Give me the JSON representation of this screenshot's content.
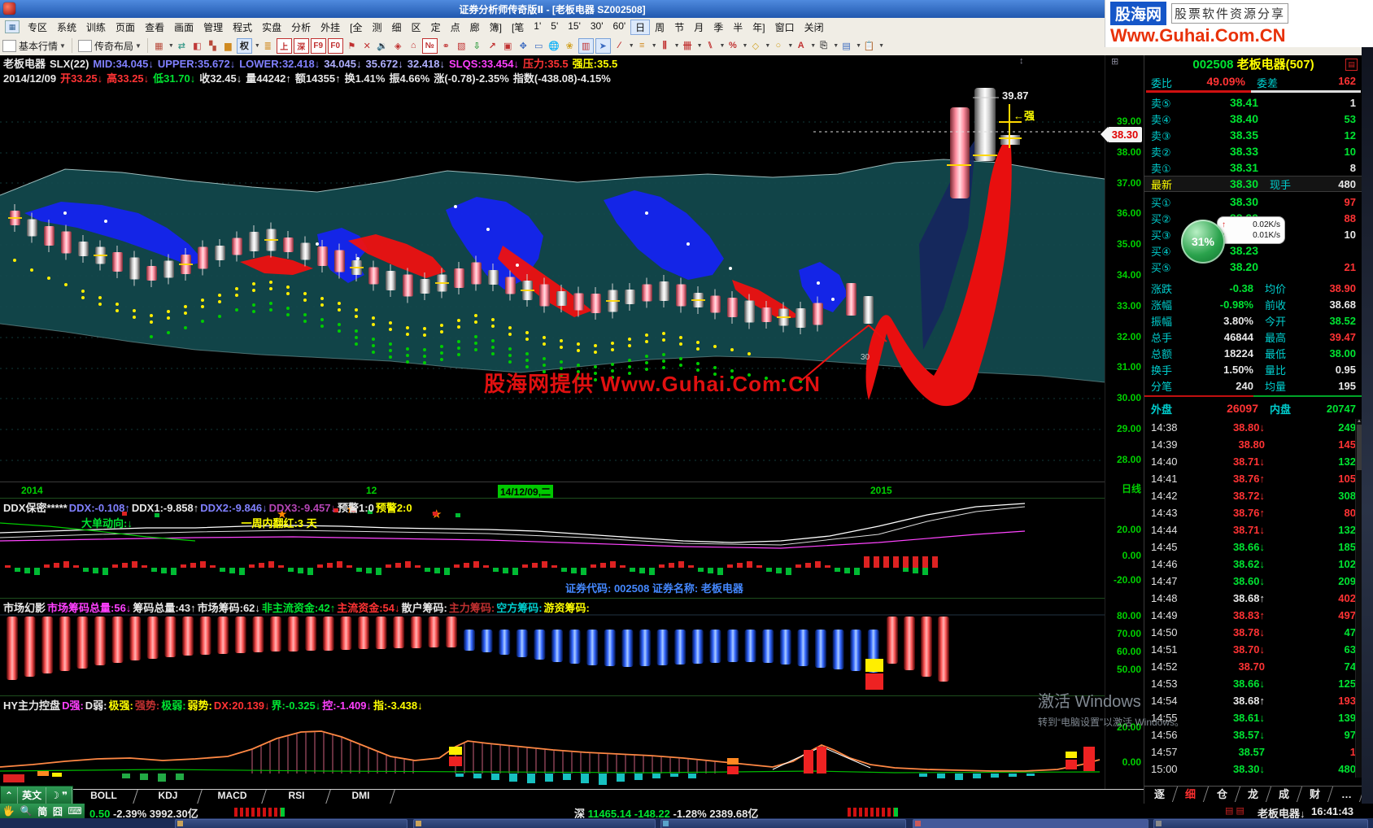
{
  "window": {
    "title": "证券分析师传奇版Ⅱ - [老板电器 SZ002508]",
    "logo": {
      "brand": "股海网",
      "tagline": "股票软件资源分享",
      "url": "Www.Guhai.Com.CN"
    }
  },
  "menu": {
    "items": [
      "专区",
      "系统",
      "训练",
      "页面",
      "查看",
      "画面",
      "管理",
      "程式",
      "实盘",
      "分析",
      "外挂"
    ],
    "quick1": [
      "[全",
      "测",
      "细",
      "区",
      "定",
      "点",
      "廊",
      "簿]"
    ],
    "quick2": [
      "[笔",
      "1'",
      "5'",
      "15'",
      "30'",
      "60'",
      "日",
      "周",
      "节",
      "月",
      "季",
      "半",
      "年]"
    ],
    "selected_period": "日",
    "tail": [
      "窗口",
      "关闭"
    ]
  },
  "toolbar": {
    "basic": "基本行情",
    "layout": "传奇布局",
    "icons": [
      [
        "▦",
        "#b84a3a",
        "d",
        "layout-grid-icon"
      ],
      [
        "⇄",
        "#3a9a8a",
        "",
        "swap-icon"
      ],
      [
        "◧",
        "#c03a3a",
        "",
        "shrink-icon"
      ],
      [
        "▚",
        "#b84a3a",
        "",
        "tiles-icon"
      ],
      [
        "▆",
        "#d08a20",
        "",
        "histogram-icon"
      ],
      [
        "权",
        "#222",
        "sd",
        "rights-adjust-button"
      ],
      [
        "≣",
        "#d08a20",
        "",
        "list-icon"
      ],
      [
        "上",
        "#c03030",
        "b",
        "shanghai-button"
      ],
      [
        "深",
        "#c03030",
        "b",
        "shenzhen-button"
      ],
      [
        "F9",
        "#c03030",
        "b",
        "f9-button"
      ],
      [
        "F0",
        "#c03030",
        "b",
        "f0-button"
      ],
      [
        "⚑",
        "#c03030",
        "",
        "flag-icon"
      ],
      [
        "✕",
        "#c03030",
        "",
        "delete-icon"
      ],
      [
        "🔉",
        "#c03030",
        "",
        "sound-icon"
      ],
      [
        "◈",
        "#c03030",
        "",
        "alarm-icon"
      ],
      [
        "⌂",
        "#c03030",
        "",
        "home-icon"
      ],
      [
        "№",
        "#c03030",
        "b",
        "number-icon"
      ],
      [
        "⚭",
        "#c03030",
        "",
        "link-icon"
      ],
      [
        "▧",
        "#c03030",
        "",
        "report-icon"
      ],
      [
        "⇩",
        "#2a9a3a",
        "",
        "download-icon"
      ],
      [
        "↗",
        "#c03030",
        "",
        "trend-icon"
      ],
      [
        "▣",
        "#c03030",
        "",
        "pages-icon"
      ],
      [
        "✥",
        "#3a6ac0",
        "",
        "move-icon"
      ],
      [
        "▭",
        "#3a6ac0",
        "",
        "ruler-icon"
      ],
      [
        "🌐",
        "#3a9a8a",
        "",
        "web-icon"
      ],
      [
        "❀",
        "#d0a020",
        "",
        "flower-icon"
      ],
      [
        "▥",
        "#c03030",
        "s",
        "grid2-icon"
      ],
      [
        "➤",
        "#3a6ac0",
        "s",
        "cursor-tool-icon"
      ],
      [
        "∕",
        "#c03030",
        "d",
        "trendline-tool-icon"
      ],
      [
        "≡",
        "#d08a20",
        "d",
        "hlines-tool-icon"
      ],
      [
        "⫼",
        "#c03030",
        "d",
        "vlines-tool-icon"
      ],
      [
        "卌",
        "#c03030",
        "d",
        "kline-tool-icon"
      ],
      [
        "⑊",
        "#c03030",
        "d",
        "channel-tool-icon"
      ],
      [
        "%",
        "#c03030",
        "d",
        "percent-tool-icon"
      ],
      [
        "◇",
        "#d0a020",
        "d",
        "diamond-tool-icon"
      ],
      [
        "○",
        "#d0a020",
        "d",
        "circle-tool-icon"
      ],
      [
        "A",
        "#c03030",
        "d",
        "text-tool-icon"
      ],
      [
        "⎘",
        "#555",
        "d",
        "copy-tool-icon"
      ],
      [
        "▤",
        "#3a6ac0",
        "d",
        "note-tool-icon"
      ],
      [
        "📋",
        "#555",
        "d",
        "clipboard-tool-icon"
      ]
    ]
  },
  "info1": [
    {
      "t": "老板电器",
      "c": "w"
    },
    {
      "t": "SLX(22)",
      "c": "w"
    },
    {
      "t": "MID:34.045↓",
      "c": "b"
    },
    {
      "t": "UPPER:35.672↓",
      "c": "b"
    },
    {
      "t": "LOWER:32.418↓",
      "c": "b"
    },
    {
      "t": "34.045↓",
      "c": "lb"
    },
    {
      "t": "35.672↓",
      "c": "lb"
    },
    {
      "t": "32.418↓",
      "c": "lb"
    },
    {
      "t": "SLQS:33.454↓",
      "c": "m"
    },
    {
      "t": "压力:35.5",
      "c": "r"
    },
    {
      "t": "强压:35.5",
      "c": "y"
    }
  ],
  "info2": [
    {
      "t": "2014/12/09",
      "c": "w"
    },
    {
      "t": "开33.25↓",
      "c": "r"
    },
    {
      "t": "高33.25↓",
      "c": "r"
    },
    {
      "t": "低31.70↓",
      "c": "g2"
    },
    {
      "t": "收32.45↓",
      "c": "w"
    },
    {
      "t": "量44242↑",
      "c": "w"
    },
    {
      "t": "额14355↑",
      "c": "w"
    },
    {
      "t": "换1.41%",
      "c": "w"
    },
    {
      "t": "振4.66%",
      "c": "w"
    },
    {
      "t": "涨(-0.78)-2.35%",
      "c": "w"
    },
    {
      "t": "指数(-438.08)-4.15%",
      "c": "w"
    }
  ],
  "chart": {
    "peak_price": "39.87",
    "strong_label": "←强",
    "marker_price": "38.30",
    "note30": "30",
    "watermark": "股海网提供 Www.Guhai.Com.CN"
  },
  "axis": {
    "main": [
      "39.00",
      "38.00",
      "37.00",
      "36.00",
      "35.00",
      "34.00",
      "33.00",
      "32.00",
      "31.00",
      "30.00",
      "29.00",
      "28.00"
    ],
    "period": "日线",
    "ddx": [
      "20.00",
      "0.00",
      "-20.00"
    ],
    "ms": [
      "80.00",
      "70.00",
      "60.00",
      "50.00"
    ],
    "hy": [
      "20.00",
      "0.00"
    ]
  },
  "dates": [
    "2014",
    "12",
    "14/12/09,二",
    "2015"
  ],
  "ddx": {
    "segs": [
      {
        "t": "DDX保密*****",
        "c": "w"
      },
      {
        "t": "DDX:-0.108↑",
        "c": "b"
      },
      {
        "t": "DDX1:-9.858↑",
        "c": "w"
      },
      {
        "t": "DDX2:-9.846↓",
        "c": "b"
      },
      {
        "t": "DDX3:-9.457↓",
        "c": "m2"
      },
      {
        "t": "预警1:0",
        "c": "w"
      },
      {
        "t": "预警2:0",
        "c": "y"
      }
    ],
    "sub1": "大单动向:↓",
    "sub2": "一周内翻红:3 天",
    "note": "证券代码: 002508 证券名称: 老板电器"
  },
  "ms": {
    "segs": [
      {
        "t": "市场幻影",
        "c": "w"
      },
      {
        "t": "市场筹码总量:56↓",
        "c": "m"
      },
      {
        "t": "筹码总量:43↑",
        "c": "w"
      },
      {
        "t": "市场筹码:62↓",
        "c": "w"
      },
      {
        "t": "非主流资金:42↑",
        "c": "g2"
      },
      {
        "t": "主流资金:54↓",
        "c": "r"
      },
      {
        "t": "散户筹码:",
        "c": "w"
      },
      {
        "t": "主力筹码:",
        "c": "r2"
      },
      {
        "t": "空方筹码:",
        "c": "c"
      },
      {
        "t": "游资筹码:",
        "c": "y"
      }
    ]
  },
  "hy": {
    "segs": [
      {
        "t": "HY主力控盘",
        "c": "w"
      },
      {
        "t": "D强:",
        "c": "m"
      },
      {
        "t": "D弱:",
        "c": "w"
      },
      {
        "t": "极强:",
        "c": "y"
      },
      {
        "t": "强势:",
        "c": "r2"
      },
      {
        "t": "极弱:",
        "c": "g2"
      },
      {
        "t": "弱势:",
        "c": "y"
      },
      {
        "t": "DX:20.139↓",
        "c": "r"
      },
      {
        "t": "界:-0.325↓",
        "c": "g2"
      },
      {
        "t": "控:-1.409↓",
        "c": "m"
      },
      {
        "t": "指:-3.438↓",
        "c": "y"
      }
    ]
  },
  "ind_tabs": [
    "BOLL",
    "KDJ",
    "MACD",
    "RSI",
    "DMI"
  ],
  "quote": {
    "code": "002508",
    "name": "老板电器(507)",
    "weibi_label": "委比",
    "weibi": "49.09%",
    "weicha_label": "委差",
    "weicha": "162",
    "sells": [
      {
        "l": "卖⑤",
        "p": "38.41",
        "v": "1",
        "vc": "w"
      },
      {
        "l": "卖④",
        "p": "38.40",
        "v": "53",
        "vc": "g"
      },
      {
        "l": "卖③",
        "p": "38.35",
        "v": "12",
        "vc": "g"
      },
      {
        "l": "卖②",
        "p": "38.33",
        "v": "10",
        "vc": "g"
      },
      {
        "l": "卖①",
        "p": "38.31",
        "v": "8",
        "vc": "w"
      }
    ],
    "latest_label": "最新",
    "latest": "38.30",
    "hand_label": "现手",
    "hand": "480",
    "buys": [
      {
        "l": "买①",
        "p": "38.30",
        "v": "97",
        "vc": "r"
      },
      {
        "l": "买②",
        "p": "38.29",
        "v": "88",
        "vc": "r"
      },
      {
        "l": "买③",
        "p": "38.26",
        "v": "10",
        "vc": "w"
      },
      {
        "l": "买④",
        "p": "38.23",
        "v": "",
        "vc": "w"
      },
      {
        "l": "买⑤",
        "p": "38.20",
        "v": "21",
        "vc": "r"
      }
    ],
    "stats": [
      {
        "l1": "涨跌",
        "v1": "-0.38",
        "c1": "g",
        "l2": "均价",
        "v2": "38.90",
        "c2": "r"
      },
      {
        "l1": "涨幅",
        "v1": "-0.98%",
        "c1": "g",
        "l2": "前收",
        "v2": "38.68",
        "c2": "w"
      },
      {
        "l1": "振幅",
        "v1": "3.80%",
        "c1": "w",
        "l2": "今开",
        "v2": "38.52",
        "c2": "g"
      },
      {
        "l1": "总手",
        "v1": "46844",
        "c1": "w",
        "l2": "最高",
        "v2": "39.47",
        "c2": "r"
      },
      {
        "l1": "总额",
        "v1": "18224",
        "c1": "w",
        "l2": "最低",
        "v2": "38.00",
        "c2": "g"
      },
      {
        "l1": "换手",
        "v1": "1.50%",
        "c1": "w",
        "l2": "量比",
        "v2": "0.95",
        "c2": "w"
      },
      {
        "l1": "分笔",
        "v1": "240",
        "c1": "w",
        "l2": "均量",
        "v2": "195",
        "c2": "w"
      }
    ],
    "waipan_label": "外盘",
    "waipan": "26097",
    "neipan_label": "内盘",
    "neipan": "20747",
    "ticks": [
      {
        "t": "14:38",
        "p": "38.80",
        "a": "↓",
        "pc": "r",
        "v": "249",
        "vc": "g"
      },
      {
        "t": "14:39",
        "p": "38.80",
        "a": "",
        "pc": "r",
        "v": "145",
        "vc": "r"
      },
      {
        "t": "14:40",
        "p": "38.71",
        "a": "↓",
        "pc": "r",
        "v": "132",
        "vc": "g"
      },
      {
        "t": "14:41",
        "p": "38.76",
        "a": "↑",
        "pc": "r",
        "v": "105",
        "vc": "r"
      },
      {
        "t": "14:42",
        "p": "38.72",
        "a": "↓",
        "pc": "r",
        "v": "308",
        "vc": "g"
      },
      {
        "t": "14:43",
        "p": "38.76",
        "a": "↑",
        "pc": "r",
        "v": "80",
        "vc": "r"
      },
      {
        "t": "14:44",
        "p": "38.71",
        "a": "↓",
        "pc": "r",
        "v": "132",
        "vc": "g"
      },
      {
        "t": "14:45",
        "p": "38.66",
        "a": "↓",
        "pc": "g",
        "v": "185",
        "vc": "g"
      },
      {
        "t": "14:46",
        "p": "38.62",
        "a": "↓",
        "pc": "g",
        "v": "102",
        "vc": "g"
      },
      {
        "t": "14:47",
        "p": "38.60",
        "a": "↓",
        "pc": "g",
        "v": "209",
        "vc": "g"
      },
      {
        "t": "14:48",
        "p": "38.68",
        "a": "↑",
        "pc": "w",
        "v": "402",
        "vc": "r"
      },
      {
        "t": "14:49",
        "p": "38.83",
        "a": "↑",
        "pc": "r",
        "v": "497",
        "vc": "r"
      },
      {
        "t": "14:50",
        "p": "38.78",
        "a": "↓",
        "pc": "r",
        "v": "47",
        "vc": "g"
      },
      {
        "t": "14:51",
        "p": "38.70",
        "a": "↓",
        "pc": "r",
        "v": "63",
        "vc": "g"
      },
      {
        "t": "14:52",
        "p": "38.70",
        "a": "",
        "pc": "r",
        "v": "74",
        "vc": "g"
      },
      {
        "t": "14:53",
        "p": "38.66",
        "a": "↓",
        "pc": "g",
        "v": "125",
        "vc": "g"
      },
      {
        "t": "14:54",
        "p": "38.68",
        "a": "↑",
        "pc": "w",
        "v": "193",
        "vc": "r"
      },
      {
        "t": "14:55",
        "p": "38.61",
        "a": "↓",
        "pc": "g",
        "v": "139",
        "vc": "g"
      },
      {
        "t": "14:56",
        "p": "38.57",
        "a": "↓",
        "pc": "g",
        "v": "97",
        "vc": "g"
      },
      {
        "t": "14:57",
        "p": "38.57",
        "a": "",
        "pc": "g",
        "v": "1",
        "vc": "r"
      },
      {
        "t": "15:00",
        "p": "38.30",
        "a": "↓",
        "pc": "g",
        "v": "480",
        "vc": "g"
      }
    ],
    "tabs": [
      "逐",
      "细",
      "仓",
      "龙",
      "成",
      "财",
      "…"
    ],
    "active_tab": "细"
  },
  "net": {
    "pct": "31%",
    "up": "0.02K/s",
    "down": "0.01K/s"
  },
  "activation": {
    "l1": "激活 Windows",
    "l2": "转到“电脑设置”以激活 Windows。"
  },
  "ime": {
    "lang": "英文",
    "hand": "🖐",
    "mag": "🔍",
    "simp": "简",
    "grid": "囧",
    "kbd": "⌨"
  },
  "status": {
    "chg": "0.50",
    "pct": "-2.39%",
    "amt": "3992.30亿",
    "sz_label": "深",
    "sz_index": "11465.14",
    "sz_chg": "-148.22",
    "sz_pct": "-1.28%",
    "sz_amt": "2389.68亿",
    "stock": "老板电器↓",
    "time": "16:41:43"
  }
}
